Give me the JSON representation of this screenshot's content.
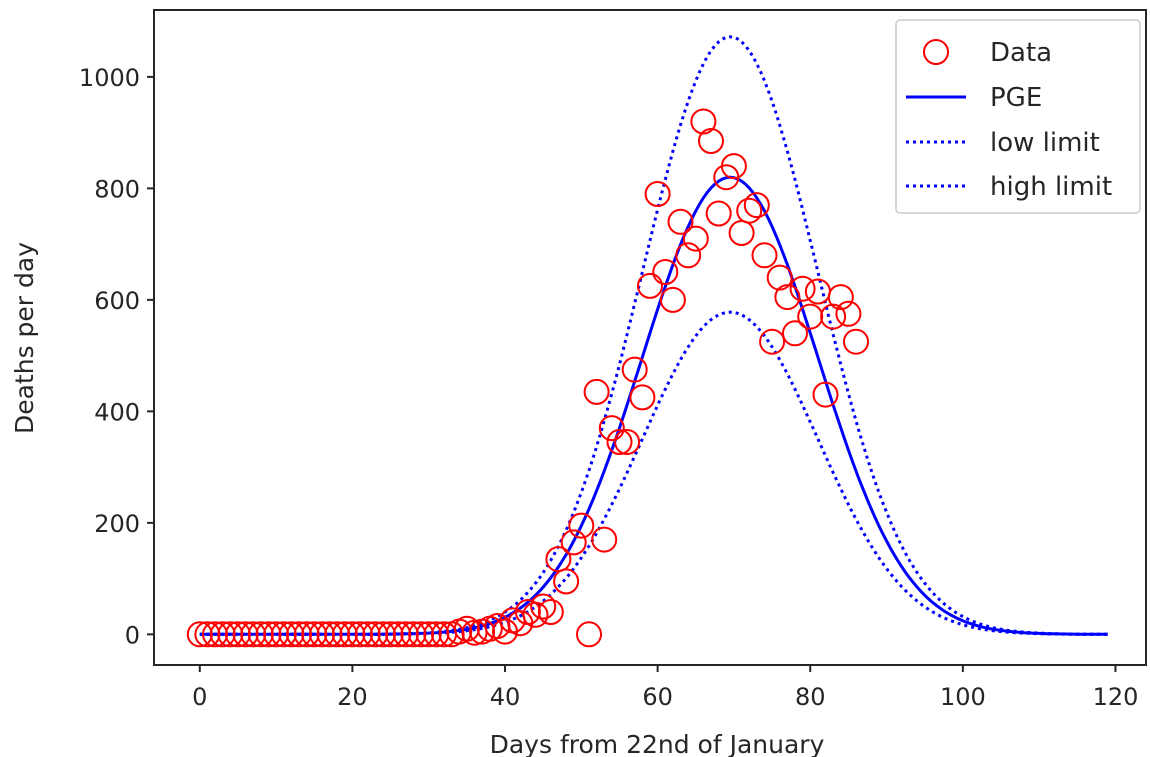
{
  "chart_data": {
    "type": "scatter",
    "title": "",
    "xlabel": "Days from 22nd of January",
    "ylabel": "Deaths per day",
    "xlim": [
      -6,
      124
    ],
    "ylim": [
      -55,
      1120
    ],
    "xticks": [
      0,
      20,
      40,
      60,
      80,
      100,
      120
    ],
    "yticks": [
      0,
      200,
      400,
      600,
      800,
      1000
    ],
    "grid": false,
    "legend_position": "top-right",
    "colors": {
      "data": "#ff0000",
      "pge": "#0000ff",
      "limits": "#0000ff",
      "axis": "#262626"
    },
    "series": [
      {
        "name": "Data",
        "kind": "scatter",
        "marker": "open-circle",
        "x": [
          0,
          1,
          2,
          3,
          4,
          5,
          6,
          7,
          8,
          9,
          10,
          11,
          12,
          13,
          14,
          15,
          16,
          17,
          18,
          19,
          20,
          21,
          22,
          23,
          24,
          25,
          26,
          27,
          28,
          29,
          30,
          31,
          32,
          33,
          34,
          35,
          36,
          37,
          38,
          39,
          40,
          41,
          42,
          43,
          44,
          45,
          46,
          47,
          48,
          49,
          50,
          51,
          52,
          53,
          54,
          55,
          56,
          57,
          58,
          59,
          60,
          61,
          62,
          63,
          64,
          65,
          66,
          67,
          68,
          69,
          70,
          71,
          72,
          73,
          74,
          75,
          76,
          77,
          78,
          79,
          80,
          81,
          82,
          83,
          84,
          85,
          86
        ],
        "y": [
          0,
          0,
          0,
          0,
          0,
          0,
          0,
          0,
          0,
          0,
          0,
          0,
          0,
          0,
          0,
          0,
          0,
          0,
          0,
          0,
          0,
          0,
          0,
          0,
          0,
          0,
          0,
          0,
          0,
          0,
          0,
          0,
          0,
          0,
          5,
          10,
          3,
          5,
          10,
          15,
          5,
          25,
          20,
          40,
          35,
          50,
          40,
          135,
          95,
          165,
          195,
          0,
          435,
          170,
          370,
          345,
          345,
          475,
          425,
          625,
          790,
          650,
          600,
          740,
          680,
          710,
          920,
          885,
          755,
          820,
          840,
          720,
          760,
          770,
          680,
          525,
          640,
          605,
          540,
          620,
          570,
          615,
          430,
          570,
          605,
          575,
          525
        ]
      },
      {
        "name": "PGE",
        "kind": "line",
        "style": "solid",
        "peak_day": 69.5,
        "peak_value": 820,
        "sigma_days": 11.5,
        "x_range": [
          0,
          119
        ]
      },
      {
        "name": "low limit",
        "kind": "line",
        "style": "dotted",
        "peak_day": 69.5,
        "peak_value": 578,
        "sigma_days": 11.5,
        "x_range": [
          0,
          119
        ]
      },
      {
        "name": "high limit",
        "kind": "line",
        "style": "dotted",
        "peak_day": 69.5,
        "peak_value": 1072,
        "sigma_days": 11.5,
        "x_range": [
          0,
          119
        ]
      }
    ]
  }
}
